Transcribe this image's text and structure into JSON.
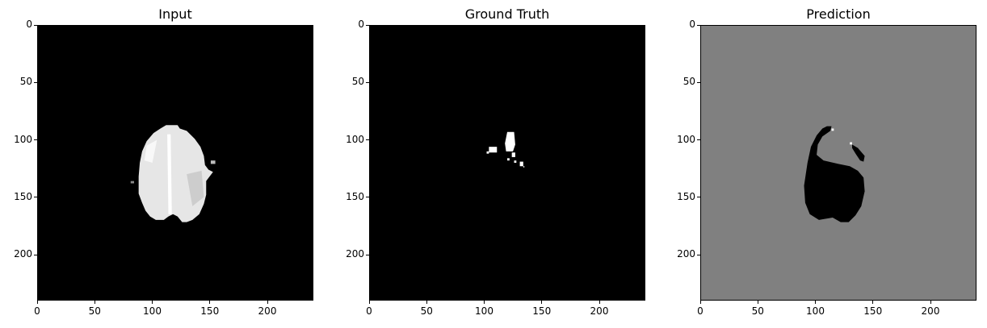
{
  "figure": {
    "axes_extent": [
      0,
      240
    ],
    "xticks": [
      "0",
      "50",
      "100",
      "150",
      "200"
    ],
    "yticks": [
      "0",
      "50",
      "100",
      "150",
      "200"
    ],
    "panels": [
      {
        "id": "input",
        "title": "Input",
        "background": "#000000",
        "content": "brain-scan",
        "colors": {
          "tissue": "#e6e6e6",
          "highlight": "#ffffff",
          "shade": "#bdbdbd"
        }
      },
      {
        "id": "ground-truth",
        "title": "Ground Truth",
        "background": "#000000",
        "content": "lesion-mask",
        "colors": {
          "lesion": "#ffffff"
        }
      },
      {
        "id": "prediction",
        "title": "Prediction",
        "background": "#808080",
        "content": "predicted-mask",
        "colors": {
          "region": "#000000",
          "spot": "#ffffff"
        }
      }
    ]
  }
}
